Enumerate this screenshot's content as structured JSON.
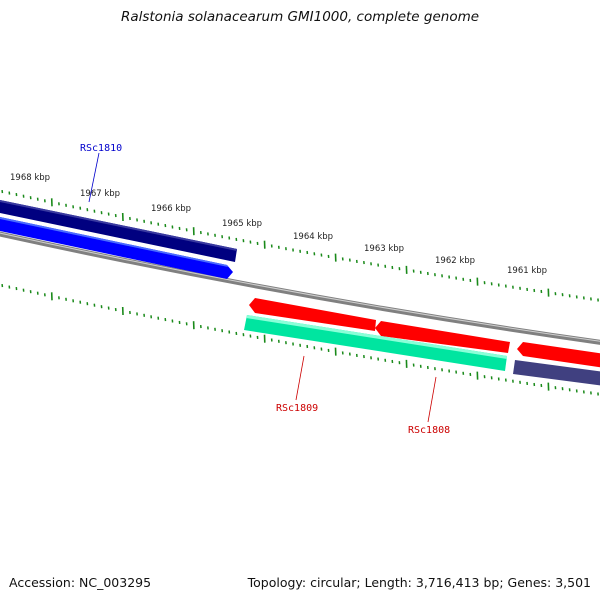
{
  "title": "Ralstonia solanacearum GMI1000, complete genome",
  "footer": {
    "accession": "Accession: NC_003295",
    "summary": "Topology: circular; Length: 3,716,413 bp; Genes: 3,501"
  },
  "colors": {
    "backbone": "#808080",
    "tick": "#1a8a1a",
    "forward_cds_dark": "#000080",
    "forward_cds": "#0000ff",
    "reverse_cds": "#ff0000",
    "reverse_gene_green": "#00e5a0",
    "reverse_gene_purple": "#404080",
    "label_blue": "#0000cc",
    "label_red": "#cc0000"
  },
  "kbp_labels": [
    "1968 kbp",
    "1967 kbp",
    "1966 kbp",
    "1965 kbp",
    "1964 kbp",
    "1963 kbp",
    "1962 kbp",
    "1961 kbp"
  ],
  "gene_labels": [
    {
      "name": "RSc1810",
      "strand": "forward",
      "color": "#0000cc"
    },
    {
      "name": "RSc1809",
      "strand": "reverse",
      "color": "#cc0000"
    },
    {
      "name": "RSc1808",
      "strand": "reverse",
      "color": "#cc0000"
    }
  ]
}
